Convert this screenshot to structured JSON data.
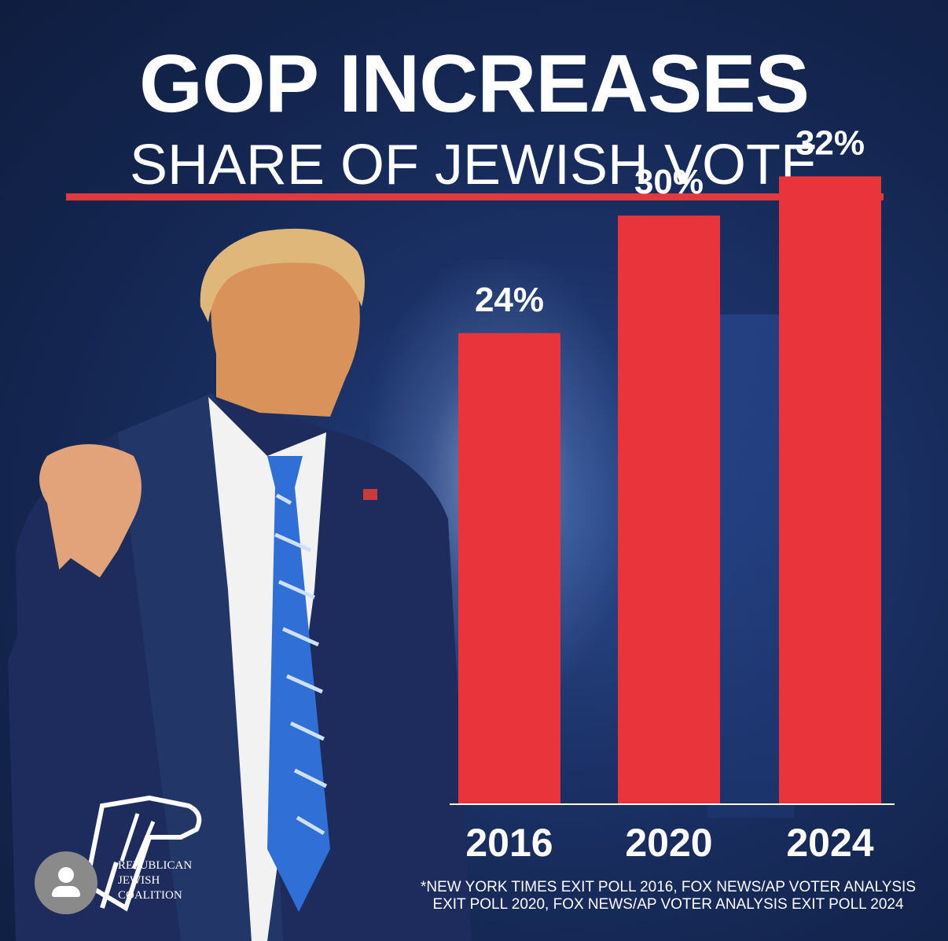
{
  "colors": {
    "bar": "#e8343a",
    "text": "#ffffff",
    "accent": "#e03a3e"
  },
  "logo": {
    "line1": "REPUBLICAN",
    "line2": "JEWISH",
    "line3": "COALITION"
  },
  "icons": {
    "avatar": "user-avatar-icon",
    "logo": "eagle-logo-icon"
  },
  "chart_data": {
    "type": "bar",
    "title": "GOP INCREASES",
    "subtitle": "SHARE OF JEWISH VOTE",
    "categories": [
      "2016",
      "2020",
      "2024"
    ],
    "values": [
      24,
      30,
      32
    ],
    "value_labels": [
      "24%",
      "30%",
      "32%"
    ],
    "unit": "%",
    "ylim": [
      0,
      41
    ],
    "grid": false,
    "legend": "none",
    "footnote_line1": "*NEW YORK TIMES EXIT POLL 2016, FOX NEWS/AP VOTER ANALYSIS",
    "footnote_line2": "EXIT POLL 2020, FOX NEWS/AP VOTER ANALYSIS EXIT POLL 2024"
  }
}
